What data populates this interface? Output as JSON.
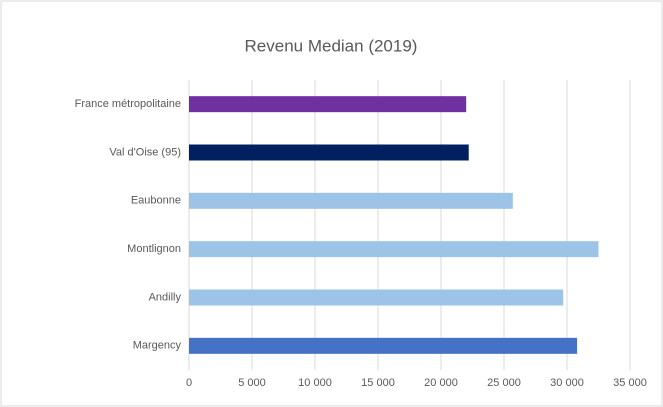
{
  "chart_data": {
    "type": "hbar",
    "title": "Revenu Median (2019)",
    "categories": [
      "France métropolitaine",
      "Val d'Oise (95)",
      "Eaubonne",
      "Montlignon",
      "Andilly",
      "Margency"
    ],
    "values": [
      22000,
      22200,
      25700,
      32500,
      29700,
      30800
    ],
    "colors": [
      "#7030a0",
      "#002060",
      "#9dc3e6",
      "#9dc3e6",
      "#9dc3e6",
      "#4472c4"
    ],
    "xlim": [
      0,
      35000
    ],
    "xticks": [
      0,
      {
        "value": 5000,
        "label": "5 000"
      },
      {
        "value": 10000,
        "label": "10 000"
      },
      {
        "value": 15000,
        "label": "15 000"
      },
      {
        "value": 20000,
        "label": "20 000"
      },
      {
        "value": 25000,
        "label": "25 000"
      },
      {
        "value": 30000,
        "label": "30 000"
      },
      {
        "value": 35000,
        "label": "35 000"
      }
    ],
    "grid": true
  }
}
